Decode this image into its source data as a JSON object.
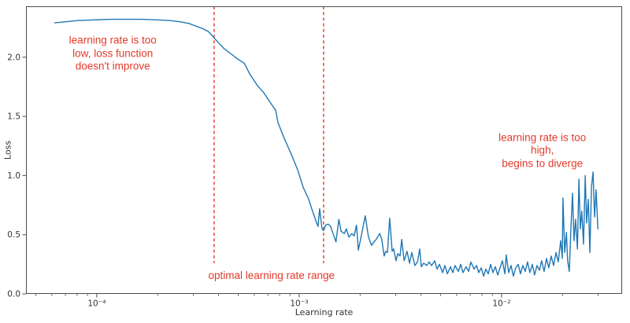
{
  "figure": {
    "background": "#ffffff",
    "line_color": "#1f77b4",
    "accent_red": "#e23a2b",
    "spine_color": "#4d4d4d",
    "tick_label_color": "#333333"
  },
  "chart_data": {
    "type": "line",
    "title": "",
    "xlabel": "Learning rate",
    "ylabel": "Loss",
    "x_scale": "log",
    "grid": false,
    "legend": false,
    "xlim": [
      4.47e-05,
      0.0394
    ],
    "ylim": [
      0,
      2.43
    ],
    "x_major_ticks": [
      {
        "value": 0.0001,
        "label": "10⁻⁴"
      },
      {
        "value": 0.001,
        "label": "10⁻³"
      },
      {
        "value": 0.01,
        "label": "10⁻²"
      }
    ],
    "y_ticks": [
      {
        "value": 0.0,
        "label": "0.0"
      },
      {
        "value": 0.5,
        "label": "0.5"
      },
      {
        "value": 1.0,
        "label": "1.0"
      },
      {
        "value": 1.5,
        "label": "1.5"
      },
      {
        "value": 2.0,
        "label": "2.0"
      }
    ],
    "vlines": [
      {
        "name": "optimal-range-left-vline",
        "x": 0.00038,
        "y_from": 0.26,
        "y_to": 2.43,
        "style": "dashed"
      },
      {
        "name": "optimal-range-right-vline",
        "x": 0.00132,
        "y_from": 0.26,
        "y_to": 2.43,
        "style": "dashed"
      }
    ],
    "annotations": [
      {
        "name": "annotation-lr-too-low",
        "text": "learning rate is too\nlow, loss function\ndoesn't improve",
        "x": 0.00012,
        "y": 2.03
      },
      {
        "name": "annotation-optimal-range",
        "text": "optimal learning rate range",
        "x": 0.00073,
        "y": 0.15
      },
      {
        "name": "annotation-lr-too-high",
        "text": "learning rate is too high,\nbegins to diverge",
        "x": 0.0159,
        "y": 1.21
      }
    ],
    "series": [
      {
        "name": "loss",
        "color": "#1f77b4",
        "points": [
          [
            6.2e-05,
            2.29
          ],
          [
            7.1e-05,
            2.3
          ],
          [
            8.1e-05,
            2.31
          ],
          [
            9.7e-05,
            2.315
          ],
          [
            0.000116,
            2.32
          ],
          [
            0.000139,
            2.32
          ],
          [
            0.000167,
            2.32
          ],
          [
            0.0002,
            2.315
          ],
          [
            0.000228,
            2.31
          ],
          [
            0.000256,
            2.3
          ],
          [
            0.000285,
            2.285
          ],
          [
            0.000312,
            2.26
          ],
          [
            0.000335,
            2.24
          ],
          [
            0.000357,
            2.215
          ],
          [
            0.000377,
            2.17
          ],
          [
            0.0004,
            2.12
          ],
          [
            0.000427,
            2.07
          ],
          [
            0.000467,
            2.02
          ],
          [
            0.000501,
            1.98
          ],
          [
            0.000535,
            1.95
          ],
          [
            0.000569,
            1.86
          ],
          [
            0.000622,
            1.76
          ],
          [
            0.000668,
            1.7
          ],
          [
            0.000731,
            1.6
          ],
          [
            0.000766,
            1.55
          ],
          [
            0.000785,
            1.45
          ],
          [
            0.000836,
            1.33
          ],
          [
            0.000914,
            1.18
          ],
          [
            0.000982,
            1.05
          ],
          [
            0.001047,
            0.9
          ],
          [
            0.001114,
            0.8
          ],
          [
            0.001164,
            0.7
          ],
          [
            0.001219,
            0.6
          ],
          [
            0.001239,
            0.57
          ],
          [
            0.001262,
            0.72
          ],
          [
            0.001297,
            0.55
          ],
          [
            0.001321,
            0.535
          ],
          [
            0.00135,
            0.58
          ],
          [
            0.00139,
            0.59
          ],
          [
            0.00143,
            0.57
          ],
          [
            0.00147,
            0.51
          ],
          [
            0.00152,
            0.44
          ],
          [
            0.00157,
            0.63
          ],
          [
            0.00161,
            0.53
          ],
          [
            0.00167,
            0.51
          ],
          [
            0.00171,
            0.55
          ],
          [
            0.00176,
            0.48
          ],
          [
            0.00182,
            0.51
          ],
          [
            0.00187,
            0.49
          ],
          [
            0.00192,
            0.58
          ],
          [
            0.00196,
            0.37
          ],
          [
            0.00201,
            0.46
          ],
          [
            0.00212,
            0.66
          ],
          [
            0.0022,
            0.48
          ],
          [
            0.00228,
            0.41
          ],
          [
            0.00234,
            0.44
          ],
          [
            0.0024,
            0.46
          ],
          [
            0.0025,
            0.51
          ],
          [
            0.00256,
            0.46
          ],
          [
            0.00263,
            0.32
          ],
          [
            0.00268,
            0.36
          ],
          [
            0.00273,
            0.35
          ],
          [
            0.0028,
            0.64
          ],
          [
            0.00288,
            0.36
          ],
          [
            0.00293,
            0.38
          ],
          [
            0.00301,
            0.28
          ],
          [
            0.00307,
            0.34
          ],
          [
            0.00315,
            0.32
          ],
          [
            0.00321,
            0.46
          ],
          [
            0.0033,
            0.28
          ],
          [
            0.00341,
            0.36
          ],
          [
            0.00351,
            0.26
          ],
          [
            0.0036,
            0.35
          ],
          [
            0.00373,
            0.24
          ],
          [
            0.00384,
            0.27
          ],
          [
            0.00394,
            0.38
          ],
          [
            0.00401,
            0.23
          ],
          [
            0.00412,
            0.26
          ],
          [
            0.00427,
            0.24
          ],
          [
            0.00439,
            0.27
          ],
          [
            0.00451,
            0.24
          ],
          [
            0.00467,
            0.28
          ],
          [
            0.0048,
            0.21
          ],
          [
            0.00493,
            0.25
          ],
          [
            0.00511,
            0.18
          ],
          [
            0.00525,
            0.24
          ],
          [
            0.0054,
            0.17
          ],
          [
            0.00559,
            0.23
          ],
          [
            0.00574,
            0.18
          ],
          [
            0.00589,
            0.24
          ],
          [
            0.00611,
            0.19
          ],
          [
            0.00628,
            0.25
          ],
          [
            0.00644,
            0.18
          ],
          [
            0.00668,
            0.23
          ],
          [
            0.00687,
            0.19
          ],
          [
            0.00705,
            0.27
          ],
          [
            0.00731,
            0.21
          ],
          [
            0.00752,
            0.24
          ],
          [
            0.00771,
            0.18
          ],
          [
            0.00793,
            0.22
          ],
          [
            0.00815,
            0.15
          ],
          [
            0.00836,
            0.21
          ],
          [
            0.00859,
            0.17
          ],
          [
            0.00883,
            0.25
          ],
          [
            0.00906,
            0.18
          ],
          [
            0.00931,
            0.23
          ],
          [
            0.00957,
            0.16
          ],
          [
            0.00982,
            0.22
          ],
          [
            0.01009,
            0.28
          ],
          [
            0.01038,
            0.17
          ],
          [
            0.01054,
            0.33
          ],
          [
            0.01084,
            0.18
          ],
          [
            0.01114,
            0.24
          ],
          [
            0.01143,
            0.15
          ],
          [
            0.01175,
            0.22
          ],
          [
            0.01208,
            0.25
          ],
          [
            0.01239,
            0.17
          ],
          [
            0.01274,
            0.24
          ],
          [
            0.01309,
            0.19
          ],
          [
            0.01343,
            0.27
          ],
          [
            0.0138,
            0.18
          ],
          [
            0.01419,
            0.25
          ],
          [
            0.01455,
            0.16
          ],
          [
            0.01496,
            0.24
          ],
          [
            0.01538,
            0.2
          ],
          [
            0.01577,
            0.28
          ],
          [
            0.01622,
            0.19
          ],
          [
            0.01667,
            0.3
          ],
          [
            0.0171,
            0.22
          ],
          [
            0.01758,
            0.32
          ],
          [
            0.01807,
            0.24
          ],
          [
            0.01858,
            0.35
          ],
          [
            0.01905,
            0.27
          ],
          [
            0.01959,
            0.45
          ],
          [
            0.01995,
            0.3
          ],
          [
            0.0201,
            0.81
          ],
          [
            0.0205,
            0.35
          ],
          [
            0.0209,
            0.52
          ],
          [
            0.0212,
            0.28
          ],
          [
            0.0216,
            0.19
          ],
          [
            0.022,
            0.55
          ],
          [
            0.0224,
            0.85
          ],
          [
            0.0228,
            0.45
          ],
          [
            0.0232,
            0.63
          ],
          [
            0.0237,
            0.38
          ],
          [
            0.0241,
            0.97
          ],
          [
            0.0245,
            0.55
          ],
          [
            0.0249,
            0.7
          ],
          [
            0.0254,
            0.42
          ],
          [
            0.0259,
            1.0
          ],
          [
            0.0263,
            0.6
          ],
          [
            0.0268,
            0.8
          ],
          [
            0.0273,
            0.35
          ],
          [
            0.0278,
            0.9
          ],
          [
            0.0283,
            1.03
          ],
          [
            0.0288,
            0.65
          ],
          [
            0.0293,
            0.88
          ],
          [
            0.0299,
            0.55
          ]
        ]
      }
    ]
  }
}
